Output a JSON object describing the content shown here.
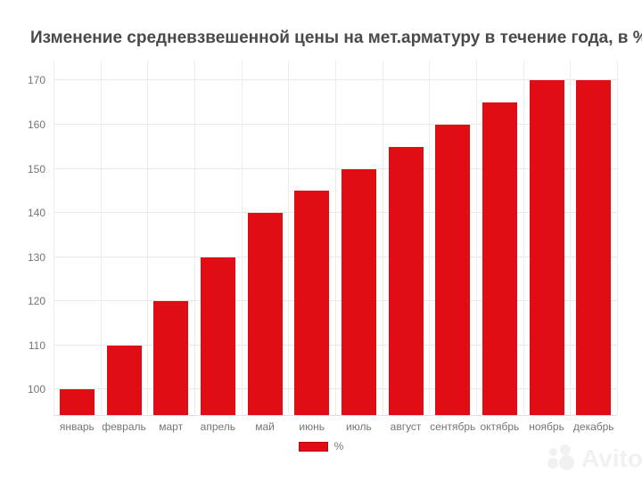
{
  "page": {
    "background": "#ffffff"
  },
  "chart_data": {
    "type": "bar",
    "title": "Изменение средневзвешенной цены на мет.арматуру в течение года, в %",
    "categories": [
      "январь",
      "февраль",
      "март",
      "апрель",
      "май",
      "июнь",
      "июль",
      "август",
      "сентябрь",
      "октябрь",
      "ноябрь",
      "декабрь"
    ],
    "series": [
      {
        "name": "%",
        "values": [
          100,
          110,
          120,
          130,
          140,
          145,
          150,
          155,
          160,
          165,
          170,
          170
        ]
      }
    ],
    "xlabel": "",
    "ylabel": "",
    "yticks": [
      100,
      110,
      120,
      130,
      140,
      150,
      160,
      170
    ],
    "ylim": [
      94.25,
      174.5
    ],
    "grid": true,
    "legend_position": "bottom-center",
    "bar_color": "#e00d15"
  },
  "legend": {
    "swatch_color": "#e00d15",
    "label": "%"
  },
  "watermark": {
    "icon": "avito-logo-circles",
    "text": "Avito",
    "color": "#f1f1f1"
  },
  "colors": {
    "title": "#4a4a4a",
    "axis_label": "#757575",
    "gridline": "#e9e9e9",
    "bar": "#e00d15"
  }
}
